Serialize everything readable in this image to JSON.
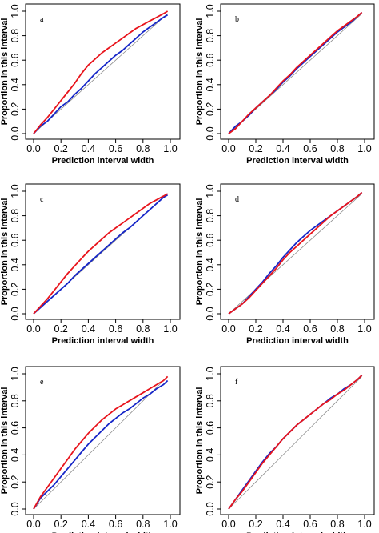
{
  "figure": {
    "xlabel": "Prediction interval width",
    "ylabel": "Proportion in this interval",
    "x_ticks": [
      "0.0",
      "0.2",
      "0.4",
      "0.6",
      "0.8",
      "1.0"
    ],
    "y_ticks": [
      "0.0",
      "0.2",
      "0.4",
      "0.6",
      "0.8",
      "1.0"
    ],
    "colors": {
      "red": "#e8141c",
      "blue": "#1626c8",
      "diagonal": "#8c8c8c",
      "axis": "#000000"
    }
  },
  "chart_data": [
    {
      "type": "line",
      "label": "a",
      "xlabel": "Prediction interval width",
      "ylabel": "Proportion in this interval",
      "xlim": [
        0,
        1
      ],
      "ylim": [
        0,
        1
      ],
      "grid": false,
      "legend": "none",
      "x": [
        0,
        0.05,
        0.1,
        0.15,
        0.2,
        0.25,
        0.3,
        0.35,
        0.4,
        0.45,
        0.5,
        0.55,
        0.6,
        0.65,
        0.7,
        0.75,
        0.8,
        0.85,
        0.9,
        0.95,
        0.98
      ],
      "series": [
        {
          "color": "#e8141c",
          "values": [
            0,
            0.07,
            0.13,
            0.2,
            0.27,
            0.34,
            0.41,
            0.49,
            0.56,
            0.61,
            0.66,
            0.7,
            0.74,
            0.78,
            0.82,
            0.86,
            0.89,
            0.92,
            0.95,
            0.98,
            1.0
          ]
        },
        {
          "color": "#1626c8",
          "values": [
            0,
            0.06,
            0.1,
            0.16,
            0.22,
            0.26,
            0.32,
            0.37,
            0.43,
            0.49,
            0.54,
            0.59,
            0.64,
            0.68,
            0.73,
            0.78,
            0.83,
            0.87,
            0.91,
            0.95,
            0.97
          ]
        },
        {
          "color": "#8c8c8c",
          "values": [
            0,
            0.05,
            0.1,
            0.15,
            0.2,
            0.25,
            0.3,
            0.35,
            0.4,
            0.45,
            0.5,
            0.55,
            0.6,
            0.65,
            0.7,
            0.75,
            0.8,
            0.85,
            0.9,
            0.95,
            0.98
          ]
        }
      ]
    },
    {
      "type": "line",
      "label": "b",
      "xlabel": "Prediction interval width",
      "ylabel": "Proportion in this interval",
      "xlim": [
        0,
        1
      ],
      "ylim": [
        0,
        1
      ],
      "grid": false,
      "legend": "none",
      "x": [
        0,
        0.05,
        0.1,
        0.15,
        0.2,
        0.25,
        0.3,
        0.35,
        0.4,
        0.45,
        0.5,
        0.55,
        0.6,
        0.65,
        0.7,
        0.75,
        0.8,
        0.85,
        0.9,
        0.95,
        0.98
      ],
      "series": [
        {
          "color": "#e8141c",
          "values": [
            0,
            0.04,
            0.1,
            0.16,
            0.21,
            0.26,
            0.31,
            0.37,
            0.43,
            0.48,
            0.54,
            0.59,
            0.64,
            0.69,
            0.74,
            0.79,
            0.84,
            0.88,
            0.92,
            0.96,
            0.99
          ]
        },
        {
          "color": "#1626c8",
          "values": [
            0,
            0.06,
            0.1,
            0.15,
            0.21,
            0.26,
            0.31,
            0.36,
            0.42,
            0.47,
            0.53,
            0.58,
            0.63,
            0.68,
            0.73,
            0.78,
            0.83,
            0.87,
            0.91,
            0.96,
            0.99
          ]
        },
        {
          "color": "#8c8c8c",
          "values": [
            0,
            0.05,
            0.1,
            0.15,
            0.2,
            0.25,
            0.3,
            0.35,
            0.4,
            0.45,
            0.5,
            0.55,
            0.6,
            0.65,
            0.7,
            0.75,
            0.8,
            0.85,
            0.9,
            0.95,
            0.98
          ]
        }
      ]
    },
    {
      "type": "line",
      "label": "c",
      "xlabel": "Prediction interval width",
      "ylabel": "Proportion in this interval",
      "xlim": [
        0,
        1
      ],
      "ylim": [
        0,
        1
      ],
      "grid": false,
      "legend": "none",
      "x": [
        0,
        0.05,
        0.1,
        0.15,
        0.2,
        0.25,
        0.3,
        0.35,
        0.4,
        0.45,
        0.5,
        0.55,
        0.6,
        0.65,
        0.7,
        0.75,
        0.8,
        0.85,
        0.9,
        0.95,
        0.98
      ],
      "series": [
        {
          "color": "#e8141c",
          "values": [
            0,
            0.06,
            0.12,
            0.19,
            0.26,
            0.33,
            0.39,
            0.45,
            0.51,
            0.56,
            0.61,
            0.66,
            0.7,
            0.74,
            0.78,
            0.82,
            0.86,
            0.9,
            0.93,
            0.96,
            0.98
          ]
        },
        {
          "color": "#1626c8",
          "values": [
            0,
            0.05,
            0.1,
            0.15,
            0.2,
            0.25,
            0.31,
            0.36,
            0.41,
            0.46,
            0.51,
            0.56,
            0.61,
            0.66,
            0.7,
            0.75,
            0.8,
            0.85,
            0.9,
            0.95,
            0.97
          ]
        },
        {
          "color": "#8c8c8c",
          "values": [
            0,
            0.05,
            0.1,
            0.15,
            0.2,
            0.25,
            0.3,
            0.35,
            0.4,
            0.45,
            0.5,
            0.55,
            0.6,
            0.65,
            0.7,
            0.75,
            0.8,
            0.85,
            0.9,
            0.95,
            0.98
          ]
        }
      ]
    },
    {
      "type": "line",
      "label": "d",
      "xlabel": "Prediction interval width",
      "ylabel": "Proportion in this interval",
      "xlim": [
        0,
        1
      ],
      "ylim": [
        0,
        1
      ],
      "grid": false,
      "legend": "none",
      "x": [
        0,
        0.05,
        0.1,
        0.15,
        0.2,
        0.25,
        0.3,
        0.35,
        0.4,
        0.45,
        0.5,
        0.55,
        0.6,
        0.65,
        0.7,
        0.75,
        0.8,
        0.85,
        0.9,
        0.95,
        0.98
      ],
      "series": [
        {
          "color": "#e8141c",
          "values": [
            0,
            0.04,
            0.08,
            0.13,
            0.19,
            0.25,
            0.31,
            0.37,
            0.44,
            0.5,
            0.55,
            0.6,
            0.65,
            0.7,
            0.75,
            0.8,
            0.84,
            0.88,
            0.92,
            0.96,
            0.99
          ]
        },
        {
          "color": "#1626c8",
          "values": [
            0,
            0.04,
            0.08,
            0.14,
            0.2,
            0.26,
            0.33,
            0.39,
            0.46,
            0.52,
            0.58,
            0.63,
            0.68,
            0.72,
            0.76,
            0.8,
            0.84,
            0.88,
            0.92,
            0.96,
            0.99
          ]
        },
        {
          "color": "#8c8c8c",
          "values": [
            0,
            0.05,
            0.1,
            0.15,
            0.2,
            0.25,
            0.3,
            0.35,
            0.4,
            0.45,
            0.5,
            0.55,
            0.6,
            0.65,
            0.7,
            0.75,
            0.8,
            0.85,
            0.9,
            0.95,
            0.98
          ]
        }
      ]
    },
    {
      "type": "line",
      "label": "e",
      "xlabel": "Prediction interval width",
      "ylabel": "Proportion in this interval",
      "xlim": [
        0,
        1
      ],
      "ylim": [
        0,
        1
      ],
      "grid": false,
      "legend": "none",
      "x": [
        0,
        0.05,
        0.1,
        0.15,
        0.2,
        0.25,
        0.3,
        0.35,
        0.4,
        0.45,
        0.5,
        0.55,
        0.6,
        0.65,
        0.7,
        0.75,
        0.8,
        0.85,
        0.9,
        0.95,
        0.98
      ],
      "series": [
        {
          "color": "#e8141c",
          "values": [
            0,
            0.09,
            0.16,
            0.23,
            0.3,
            0.37,
            0.44,
            0.5,
            0.56,
            0.61,
            0.66,
            0.7,
            0.74,
            0.77,
            0.8,
            0.83,
            0.86,
            0.89,
            0.92,
            0.95,
            0.98
          ]
        },
        {
          "color": "#1626c8",
          "values": [
            0,
            0.08,
            0.13,
            0.18,
            0.24,
            0.3,
            0.36,
            0.42,
            0.48,
            0.53,
            0.58,
            0.63,
            0.67,
            0.71,
            0.74,
            0.78,
            0.82,
            0.85,
            0.89,
            0.92,
            0.95
          ]
        },
        {
          "color": "#8c8c8c",
          "values": [
            0,
            0.05,
            0.1,
            0.15,
            0.2,
            0.25,
            0.3,
            0.35,
            0.4,
            0.45,
            0.5,
            0.55,
            0.6,
            0.65,
            0.7,
            0.75,
            0.8,
            0.85,
            0.9,
            0.95,
            0.98
          ]
        }
      ]
    },
    {
      "type": "line",
      "label": "f",
      "xlabel": "Prediction interval width",
      "ylabel": "Proportion in this interval",
      "xlim": [
        0,
        1
      ],
      "ylim": [
        0,
        1
      ],
      "grid": false,
      "legend": "none",
      "x": [
        0,
        0.05,
        0.1,
        0.15,
        0.2,
        0.25,
        0.3,
        0.35,
        0.4,
        0.45,
        0.5,
        0.55,
        0.6,
        0.65,
        0.7,
        0.75,
        0.8,
        0.85,
        0.9,
        0.95,
        0.98
      ],
      "series": [
        {
          "color": "#e8141c",
          "values": [
            0,
            0.07,
            0.13,
            0.2,
            0.27,
            0.34,
            0.4,
            0.46,
            0.52,
            0.57,
            0.62,
            0.66,
            0.7,
            0.74,
            0.78,
            0.81,
            0.85,
            0.88,
            0.92,
            0.96,
            0.99
          ]
        },
        {
          "color": "#1626c8",
          "values": [
            0,
            0.07,
            0.14,
            0.21,
            0.28,
            0.35,
            0.41,
            0.46,
            0.52,
            0.57,
            0.62,
            0.66,
            0.7,
            0.74,
            0.78,
            0.82,
            0.85,
            0.89,
            0.92,
            0.96,
            0.99
          ]
        },
        {
          "color": "#8c8c8c",
          "values": [
            0,
            0.05,
            0.1,
            0.15,
            0.2,
            0.25,
            0.3,
            0.35,
            0.4,
            0.45,
            0.5,
            0.55,
            0.6,
            0.65,
            0.7,
            0.75,
            0.8,
            0.85,
            0.9,
            0.95,
            0.98
          ]
        }
      ]
    }
  ]
}
